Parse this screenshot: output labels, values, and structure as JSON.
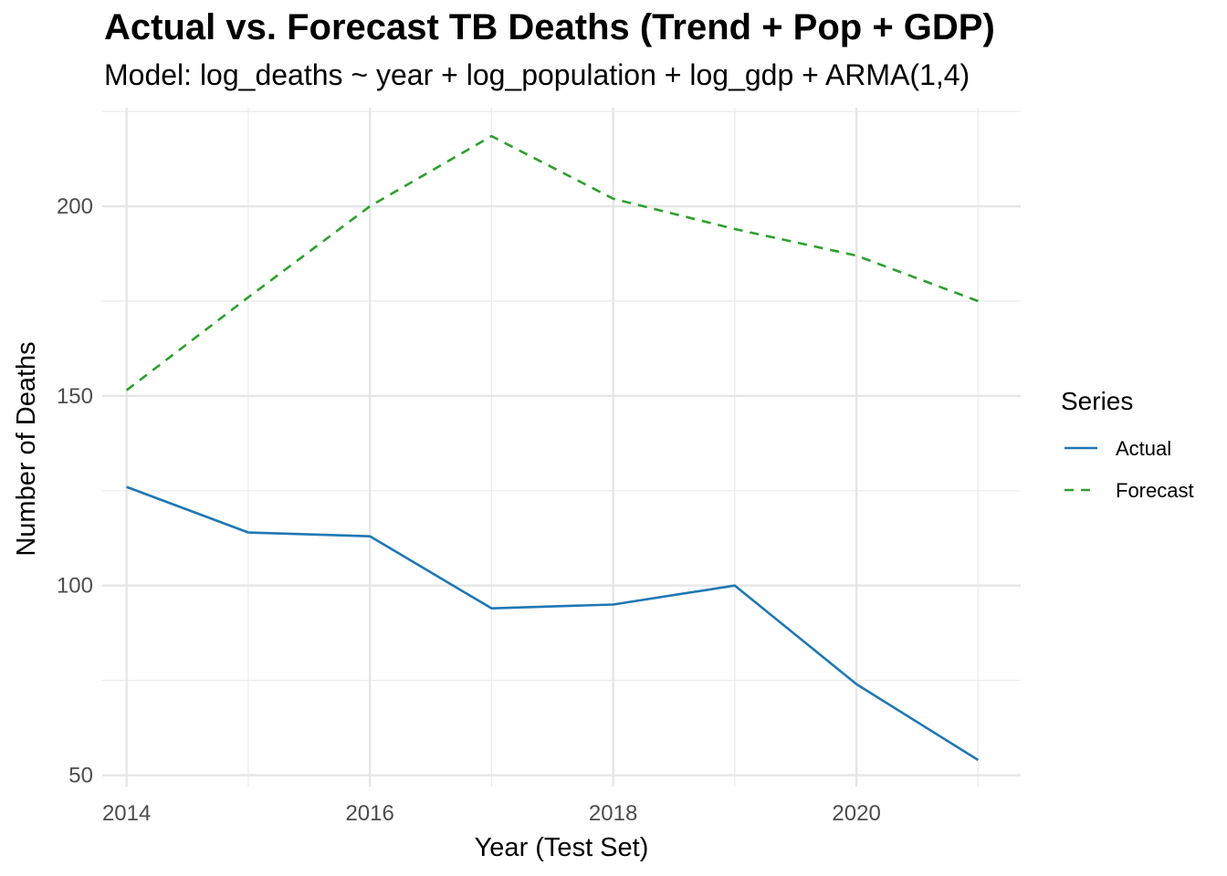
{
  "chart_data": {
    "type": "line",
    "title": "Actual vs. Forecast TB Deaths (Trend + Pop + GDP)",
    "subtitle": "Model: log_deaths ~ year + log_population + log_gdp + ARMA(1,4)",
    "xlabel": "Year (Test Set)",
    "ylabel": "Number of Deaths",
    "x": [
      2014,
      2015,
      2016,
      2017,
      2018,
      2019,
      2020,
      2021
    ],
    "xlim": [
      2013.8,
      2021.35
    ],
    "ylim": [
      47,
      226
    ],
    "x_ticks": [
      2014,
      2016,
      2018,
      2020
    ],
    "x_tick_labels": [
      "2014",
      "2016",
      "2018",
      "2020"
    ],
    "y_ticks": [
      50,
      100,
      150,
      200
    ],
    "y_tick_labels": [
      "50",
      "100",
      "150",
      "200"
    ],
    "grid": true,
    "legend": {
      "title": "Series",
      "position": "right"
    },
    "series": [
      {
        "name": "Actual",
        "color": "#1f77b4",
        "dash": "solid",
        "values": [
          126,
          114,
          113,
          94,
          95,
          100,
          74,
          54
        ]
      },
      {
        "name": "Forecast",
        "color": "#2ca02c",
        "dash": "dashed",
        "values": [
          151.5,
          176,
          200,
          218.5,
          202,
          194,
          187,
          175
        ]
      }
    ]
  }
}
